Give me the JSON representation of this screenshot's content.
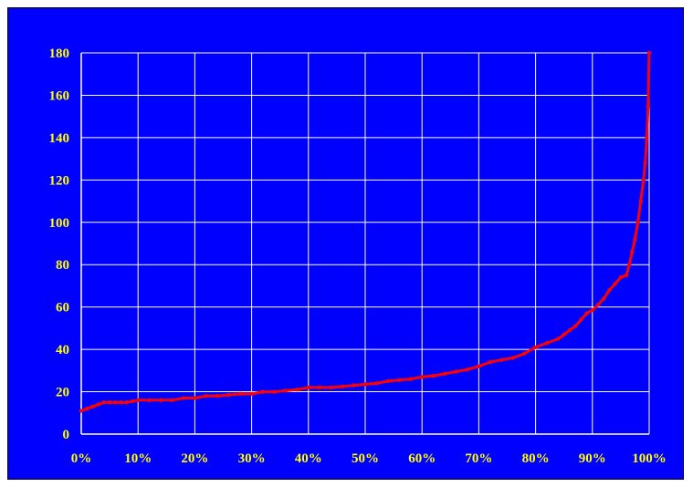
{
  "colors": {
    "background": "#0000ff",
    "gridline": "#ffffff",
    "axis": "#ffffff",
    "tick_label": "#ffff00",
    "series": "#ff0000"
  },
  "chart_data": {
    "type": "line",
    "title": "",
    "xlabel": "",
    "ylabel": "",
    "xlim": [
      0,
      100
    ],
    "ylim": [
      0,
      180
    ],
    "grid": true,
    "x_ticks": [
      "0%",
      "10%",
      "20%",
      "30%",
      "40%",
      "50%",
      "60%",
      "70%",
      "80%",
      "90%",
      "100%"
    ],
    "y_ticks": [
      "0",
      "20",
      "40",
      "60",
      "80",
      "100",
      "120",
      "140",
      "160",
      "180"
    ],
    "series": [
      {
        "marker": "dot",
        "points": [
          [
            0,
            11
          ],
          [
            1,
            12
          ],
          [
            2,
            13
          ],
          [
            3,
            14
          ],
          [
            4,
            15
          ],
          [
            5,
            15
          ],
          [
            6,
            15
          ],
          [
            7,
            15
          ],
          [
            8,
            15
          ],
          [
            9,
            15.5
          ],
          [
            10,
            16
          ],
          [
            12,
            16
          ],
          [
            14,
            16
          ],
          [
            16,
            16
          ],
          [
            18,
            17
          ],
          [
            20,
            17
          ],
          [
            22,
            18
          ],
          [
            24,
            18
          ],
          [
            26,
            18.5
          ],
          [
            28,
            19
          ],
          [
            30,
            19
          ],
          [
            32,
            20
          ],
          [
            34,
            20
          ],
          [
            36,
            20.5
          ],
          [
            38,
            21
          ],
          [
            40,
            22
          ],
          [
            42,
            22
          ],
          [
            44,
            22
          ],
          [
            46,
            22.5
          ],
          [
            48,
            23
          ],
          [
            50,
            23.5
          ],
          [
            52,
            24
          ],
          [
            54,
            25
          ],
          [
            56,
            25.5
          ],
          [
            58,
            26
          ],
          [
            60,
            27
          ],
          [
            62,
            27.5
          ],
          [
            64,
            28.5
          ],
          [
            66,
            29.5
          ],
          [
            68,
            30.5
          ],
          [
            70,
            32
          ],
          [
            72,
            34
          ],
          [
            74,
            35
          ],
          [
            76,
            36
          ],
          [
            78,
            38
          ],
          [
            80,
            41
          ],
          [
            82,
            43
          ],
          [
            84,
            45
          ],
          [
            85,
            47
          ],
          [
            86,
            49
          ],
          [
            87,
            51
          ],
          [
            88,
            54
          ],
          [
            89,
            57
          ],
          [
            90,
            58.5
          ],
          [
            91,
            61
          ],
          [
            92,
            64
          ],
          [
            93,
            68
          ],
          [
            94,
            71
          ],
          [
            95,
            74
          ],
          [
            96,
            75
          ],
          [
            96.5,
            80
          ],
          [
            97,
            86
          ],
          [
            97.5,
            92
          ],
          [
            98,
            100
          ],
          [
            98.5,
            110
          ],
          [
            99,
            120
          ],
          [
            99.3,
            128
          ],
          [
            99.6,
            140
          ],
          [
            99.8,
            155
          ],
          [
            100,
            180
          ]
        ]
      }
    ]
  }
}
